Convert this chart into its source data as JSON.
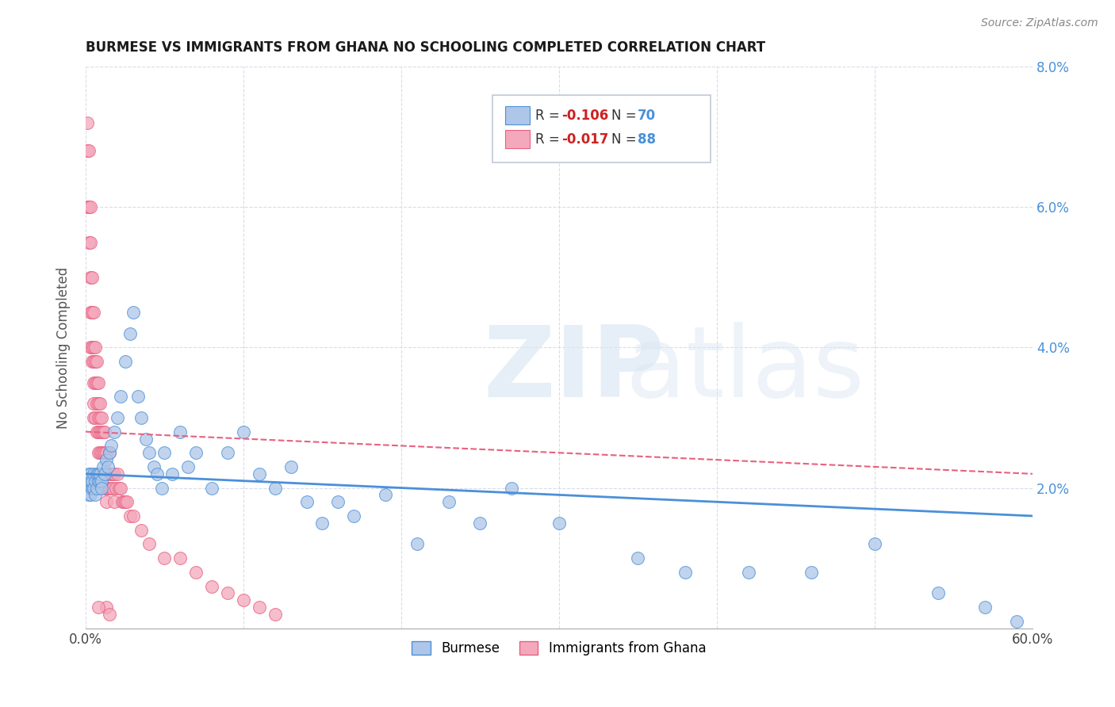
{
  "title": "BURMESE VS IMMIGRANTS FROM GHANA NO SCHOOLING COMPLETED CORRELATION CHART",
  "source": "Source: ZipAtlas.com",
  "ylabel": "No Schooling Completed",
  "xlim": [
    0,
    0.6
  ],
  "ylim": [
    0,
    0.08
  ],
  "legend_labels": [
    "Burmese",
    "Immigrants from Ghana"
  ],
  "burmese_R": "-0.106",
  "burmese_N": "70",
  "ghana_R": "-0.017",
  "ghana_N": "88",
  "burmese_color": "#aec6e8",
  "ghana_color": "#f4a8bc",
  "burmese_line_color": "#4a90d9",
  "ghana_line_color": "#e86080",
  "background_color": "#ffffff",
  "grid_color": "#d8dce8",
  "burmese_x": [
    0.001,
    0.001,
    0.002,
    0.002,
    0.002,
    0.003,
    0.003,
    0.003,
    0.004,
    0.004,
    0.005,
    0.005,
    0.006,
    0.006,
    0.007,
    0.007,
    0.008,
    0.008,
    0.009,
    0.009,
    0.01,
    0.01,
    0.011,
    0.012,
    0.013,
    0.014,
    0.015,
    0.016,
    0.018,
    0.02,
    0.022,
    0.025,
    0.028,
    0.03,
    0.033,
    0.035,
    0.038,
    0.04,
    0.043,
    0.045,
    0.048,
    0.05,
    0.055,
    0.06,
    0.065,
    0.07,
    0.08,
    0.09,
    0.1,
    0.11,
    0.12,
    0.13,
    0.14,
    0.15,
    0.16,
    0.17,
    0.19,
    0.21,
    0.23,
    0.25,
    0.27,
    0.3,
    0.35,
    0.38,
    0.42,
    0.46,
    0.5,
    0.54,
    0.57,
    0.59
  ],
  "burmese_y": [
    0.021,
    0.02,
    0.022,
    0.02,
    0.019,
    0.021,
    0.022,
    0.019,
    0.02,
    0.021,
    0.022,
    0.02,
    0.021,
    0.019,
    0.022,
    0.02,
    0.021,
    0.022,
    0.021,
    0.022,
    0.021,
    0.02,
    0.023,
    0.022,
    0.024,
    0.023,
    0.025,
    0.026,
    0.028,
    0.03,
    0.033,
    0.038,
    0.042,
    0.045,
    0.033,
    0.03,
    0.027,
    0.025,
    0.023,
    0.022,
    0.02,
    0.025,
    0.022,
    0.028,
    0.023,
    0.025,
    0.02,
    0.025,
    0.028,
    0.022,
    0.02,
    0.023,
    0.018,
    0.015,
    0.018,
    0.016,
    0.019,
    0.012,
    0.018,
    0.015,
    0.02,
    0.015,
    0.01,
    0.008,
    0.008,
    0.008,
    0.012,
    0.005,
    0.003,
    0.001
  ],
  "ghana_x": [
    0.001,
    0.001,
    0.001,
    0.002,
    0.002,
    0.002,
    0.003,
    0.003,
    0.003,
    0.003,
    0.003,
    0.004,
    0.004,
    0.004,
    0.004,
    0.005,
    0.005,
    0.005,
    0.005,
    0.005,
    0.005,
    0.006,
    0.006,
    0.006,
    0.006,
    0.007,
    0.007,
    0.007,
    0.007,
    0.008,
    0.008,
    0.008,
    0.008,
    0.008,
    0.009,
    0.009,
    0.009,
    0.009,
    0.01,
    0.01,
    0.01,
    0.01,
    0.011,
    0.011,
    0.011,
    0.012,
    0.012,
    0.012,
    0.012,
    0.013,
    0.013,
    0.013,
    0.013,
    0.014,
    0.014,
    0.015,
    0.015,
    0.015,
    0.016,
    0.016,
    0.017,
    0.017,
    0.018,
    0.018,
    0.019,
    0.02,
    0.021,
    0.022,
    0.023,
    0.024,
    0.025,
    0.026,
    0.028,
    0.03,
    0.035,
    0.04,
    0.05,
    0.06,
    0.07,
    0.08,
    0.09,
    0.1,
    0.11,
    0.12,
    0.013,
    0.015,
    0.005,
    0.008
  ],
  "ghana_y": [
    0.072,
    0.068,
    0.06,
    0.068,
    0.06,
    0.055,
    0.06,
    0.055,
    0.05,
    0.045,
    0.04,
    0.05,
    0.045,
    0.04,
    0.038,
    0.045,
    0.04,
    0.038,
    0.035,
    0.032,
    0.03,
    0.04,
    0.038,
    0.035,
    0.03,
    0.038,
    0.035,
    0.032,
    0.028,
    0.035,
    0.032,
    0.03,
    0.028,
    0.025,
    0.032,
    0.03,
    0.028,
    0.025,
    0.03,
    0.028,
    0.025,
    0.022,
    0.028,
    0.025,
    0.022,
    0.028,
    0.025,
    0.022,
    0.02,
    0.025,
    0.022,
    0.02,
    0.018,
    0.022,
    0.02,
    0.025,
    0.022,
    0.02,
    0.022,
    0.02,
    0.022,
    0.02,
    0.022,
    0.018,
    0.02,
    0.022,
    0.02,
    0.02,
    0.018,
    0.018,
    0.018,
    0.018,
    0.016,
    0.016,
    0.014,
    0.012,
    0.01,
    0.01,
    0.008,
    0.006,
    0.005,
    0.004,
    0.003,
    0.002,
    0.003,
    0.002,
    0.02,
    0.003
  ]
}
